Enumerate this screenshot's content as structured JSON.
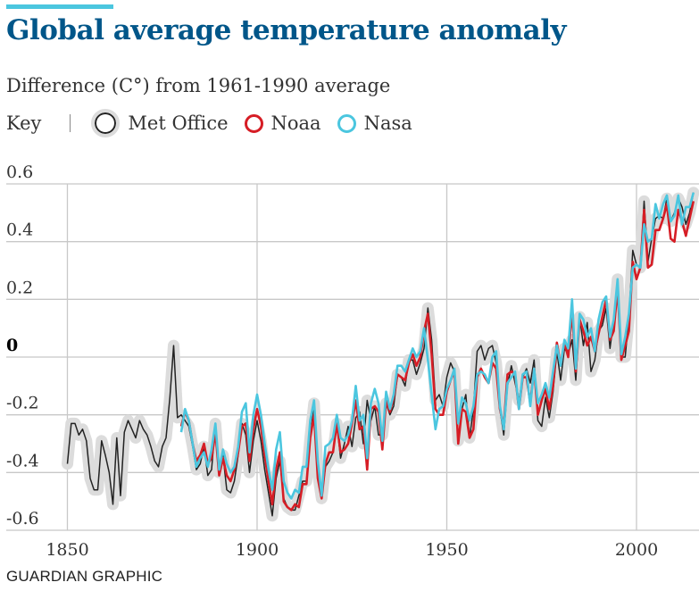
{
  "title": "Global average temperature anomaly",
  "subtitle": "Difference (C°) from 1961-1990 average",
  "legend": {
    "key_label": "Key",
    "items": [
      {
        "label": "Met Office",
        "color": "#222222"
      },
      {
        "label": "Noaa",
        "color": "#d61d25"
      },
      {
        "label": "Nasa",
        "color": "#4bc6df"
      }
    ]
  },
  "credit": "GUARDIAN GRAPHIC",
  "colors": {
    "met_halo": "#dcdcdc",
    "met_line": "#222222",
    "noaa": "#d61d25",
    "nasa": "#4bc6df",
    "grid": "#c8c8c8",
    "accent": "#4bc6df",
    "title": "#005689"
  },
  "chart_data": {
    "type": "line",
    "title": "Global average temperature anomaly",
    "ylabel": "Difference (C°) from 1961-1990 average",
    "xlim": [
      1845,
      2016
    ],
    "ylim": [
      -0.6,
      0.6
    ],
    "x_ticks": [
      {
        "value": 1850,
        "label": "1850"
      },
      {
        "value": 1900,
        "label": "1900"
      },
      {
        "value": 1950,
        "label": "1950"
      },
      {
        "value": 2000,
        "label": "2000"
      }
    ],
    "y_ticks": [
      {
        "value": 0.6,
        "label": "0.6"
      },
      {
        "value": 0.4,
        "label": "0.4"
      },
      {
        "value": 0.2,
        "label": "0.2"
      },
      {
        "value": 0,
        "label": "0"
      },
      {
        "value": -0.2,
        "label": "-0.2"
      },
      {
        "value": -0.4,
        "label": "-0.4"
      },
      {
        "value": -0.6,
        "label": "-0.6"
      }
    ],
    "series": [
      {
        "name": "Met Office",
        "start_year": 1850,
        "values": [
          -0.37,
          -0.23,
          -0.23,
          -0.27,
          -0.25,
          -0.29,
          -0.42,
          -0.46,
          -0.46,
          -0.29,
          -0.34,
          -0.4,
          -0.51,
          -0.28,
          -0.48,
          -0.26,
          -0.22,
          -0.25,
          -0.28,
          -0.22,
          -0.25,
          -0.27,
          -0.31,
          -0.36,
          -0.38,
          -0.31,
          -0.28,
          -0.14,
          0.04,
          -0.21,
          -0.2,
          -0.22,
          -0.24,
          -0.31,
          -0.39,
          -0.37,
          -0.31,
          -0.41,
          -0.39,
          -0.23,
          -0.4,
          -0.34,
          -0.46,
          -0.47,
          -0.43,
          -0.34,
          -0.23,
          -0.27,
          -0.4,
          -0.29,
          -0.22,
          -0.29,
          -0.39,
          -0.47,
          -0.55,
          -0.42,
          -0.36,
          -0.49,
          -0.52,
          -0.53,
          -0.53,
          -0.48,
          -0.43,
          -0.43,
          -0.28,
          -0.16,
          -0.4,
          -0.49,
          -0.38,
          -0.36,
          -0.33,
          -0.23,
          -0.35,
          -0.3,
          -0.24,
          -0.31,
          -0.21,
          -0.19,
          -0.3,
          -0.15,
          -0.22,
          -0.17,
          -0.27,
          -0.27,
          -0.16,
          -0.2,
          -0.17,
          -0.06,
          -0.07,
          -0.1,
          -0.01,
          -0.01,
          -0.06,
          -0.02,
          0.03,
          0.17,
          0.06,
          -0.15,
          -0.13,
          -0.17,
          -0.07,
          -0.02,
          -0.05,
          -0.29,
          -0.18,
          -0.13,
          -0.28,
          -0.18,
          0.02,
          0.04,
          -0.01,
          0.03,
          0.04,
          -0.02,
          -0.18,
          -0.27,
          -0.1,
          -0.03,
          -0.09,
          -0.15,
          -0.07,
          -0.04,
          -0.09,
          -0.01,
          -0.22,
          -0.24,
          -0.14,
          -0.21,
          -0.12,
          0.02,
          -0.08,
          0.03,
          0.01,
          0.06,
          -0.08,
          0.14,
          0.04,
          0.12,
          -0.05,
          -0.01,
          0.09,
          0.11,
          0.17,
          0.03,
          0.13,
          0.27,
          0.0,
          0.0,
          0.14,
          0.37,
          0.32,
          0.31,
          0.54,
          0.33,
          0.41,
          0.48,
          0.49,
          0.48,
          0.55,
          0.47,
          0.5,
          0.55,
          0.52,
          0.46,
          0.5,
          0.57
        ]
      },
      {
        "name": "Noaa",
        "start_year": 1880,
        "values": [
          -0.24,
          -0.19,
          -0.22,
          -0.3,
          -0.36,
          -0.34,
          -0.3,
          -0.37,
          -0.35,
          -0.26,
          -0.41,
          -0.35,
          -0.41,
          -0.43,
          -0.39,
          -0.33,
          -0.24,
          -0.23,
          -0.36,
          -0.25,
          -0.18,
          -0.24,
          -0.34,
          -0.43,
          -0.51,
          -0.39,
          -0.33,
          -0.5,
          -0.52,
          -0.53,
          -0.51,
          -0.52,
          -0.44,
          -0.44,
          -0.28,
          -0.2,
          -0.42,
          -0.49,
          -0.37,
          -0.33,
          -0.33,
          -0.23,
          -0.33,
          -0.32,
          -0.3,
          -0.23,
          -0.15,
          -0.25,
          -0.24,
          -0.39,
          -0.18,
          -0.17,
          -0.19,
          -0.32,
          -0.15,
          -0.19,
          -0.14,
          -0.06,
          -0.07,
          -0.08,
          -0.02,
          0.01,
          -0.03,
          0.0,
          0.09,
          0.15,
          0.01,
          -0.18,
          -0.2,
          -0.2,
          -0.12,
          -0.08,
          -0.05,
          -0.3,
          -0.18,
          -0.19,
          -0.28,
          -0.25,
          -0.07,
          -0.04,
          -0.07,
          -0.09,
          -0.02,
          -0.04,
          -0.18,
          -0.24,
          -0.06,
          -0.05,
          -0.06,
          -0.18,
          -0.07,
          -0.07,
          -0.16,
          -0.04,
          -0.2,
          -0.15,
          -0.11,
          -0.18,
          -0.1,
          0.05,
          -0.03,
          0.05,
          0.0,
          0.16,
          -0.05,
          0.13,
          0.09,
          0.04,
          0.07,
          0.02,
          0.08,
          0.14,
          0.2,
          0.06,
          0.09,
          0.24,
          -0.01,
          0.04,
          0.09,
          0.33,
          0.27,
          0.31,
          0.51,
          0.31,
          0.32,
          0.44,
          0.44,
          0.48,
          0.53,
          0.41,
          0.4,
          0.51,
          0.47,
          0.42,
          0.48,
          0.54
        ]
      },
      {
        "name": "Nasa",
        "start_year": 1880,
        "values": [
          -0.26,
          -0.18,
          -0.22,
          -0.3,
          -0.38,
          -0.35,
          -0.33,
          -0.38,
          -0.32,
          -0.23,
          -0.39,
          -0.32,
          -0.37,
          -0.4,
          -0.38,
          -0.31,
          -0.19,
          -0.16,
          -0.33,
          -0.2,
          -0.13,
          -0.2,
          -0.3,
          -0.39,
          -0.46,
          -0.32,
          -0.26,
          -0.43,
          -0.47,
          -0.49,
          -0.46,
          -0.47,
          -0.38,
          -0.38,
          -0.22,
          -0.15,
          -0.36,
          -0.48,
          -0.31,
          -0.3,
          -0.28,
          -0.2,
          -0.28,
          -0.29,
          -0.27,
          -0.22,
          -0.1,
          -0.22,
          -0.2,
          -0.35,
          -0.16,
          -0.11,
          -0.16,
          -0.29,
          -0.12,
          -0.18,
          -0.13,
          -0.03,
          -0.03,
          -0.05,
          -0.01,
          0.03,
          0.0,
          0.02,
          0.1,
          -0.01,
          -0.13,
          -0.25,
          -0.18,
          -0.17,
          -0.11,
          -0.08,
          -0.04,
          -0.23,
          -0.14,
          -0.16,
          -0.22,
          -0.17,
          -0.06,
          -0.05,
          -0.06,
          -0.09,
          0.0,
          0.02,
          -0.17,
          -0.25,
          -0.09,
          -0.07,
          -0.05,
          -0.18,
          -0.06,
          -0.05,
          -0.17,
          -0.04,
          -0.16,
          -0.13,
          -0.09,
          -0.14,
          -0.05,
          0.04,
          -0.03,
          0.06,
          0.03,
          0.2,
          -0.04,
          0.15,
          0.13,
          0.07,
          0.1,
          0.02,
          0.13,
          0.19,
          0.21,
          0.07,
          0.13,
          0.27,
          0.01,
          0.07,
          0.15,
          0.31,
          0.32,
          0.31,
          0.46,
          0.4,
          0.41,
          0.53,
          0.48,
          0.53,
          0.56,
          0.47,
          0.49,
          0.56,
          0.46,
          0.52,
          0.52,
          0.57
        ]
      }
    ]
  }
}
